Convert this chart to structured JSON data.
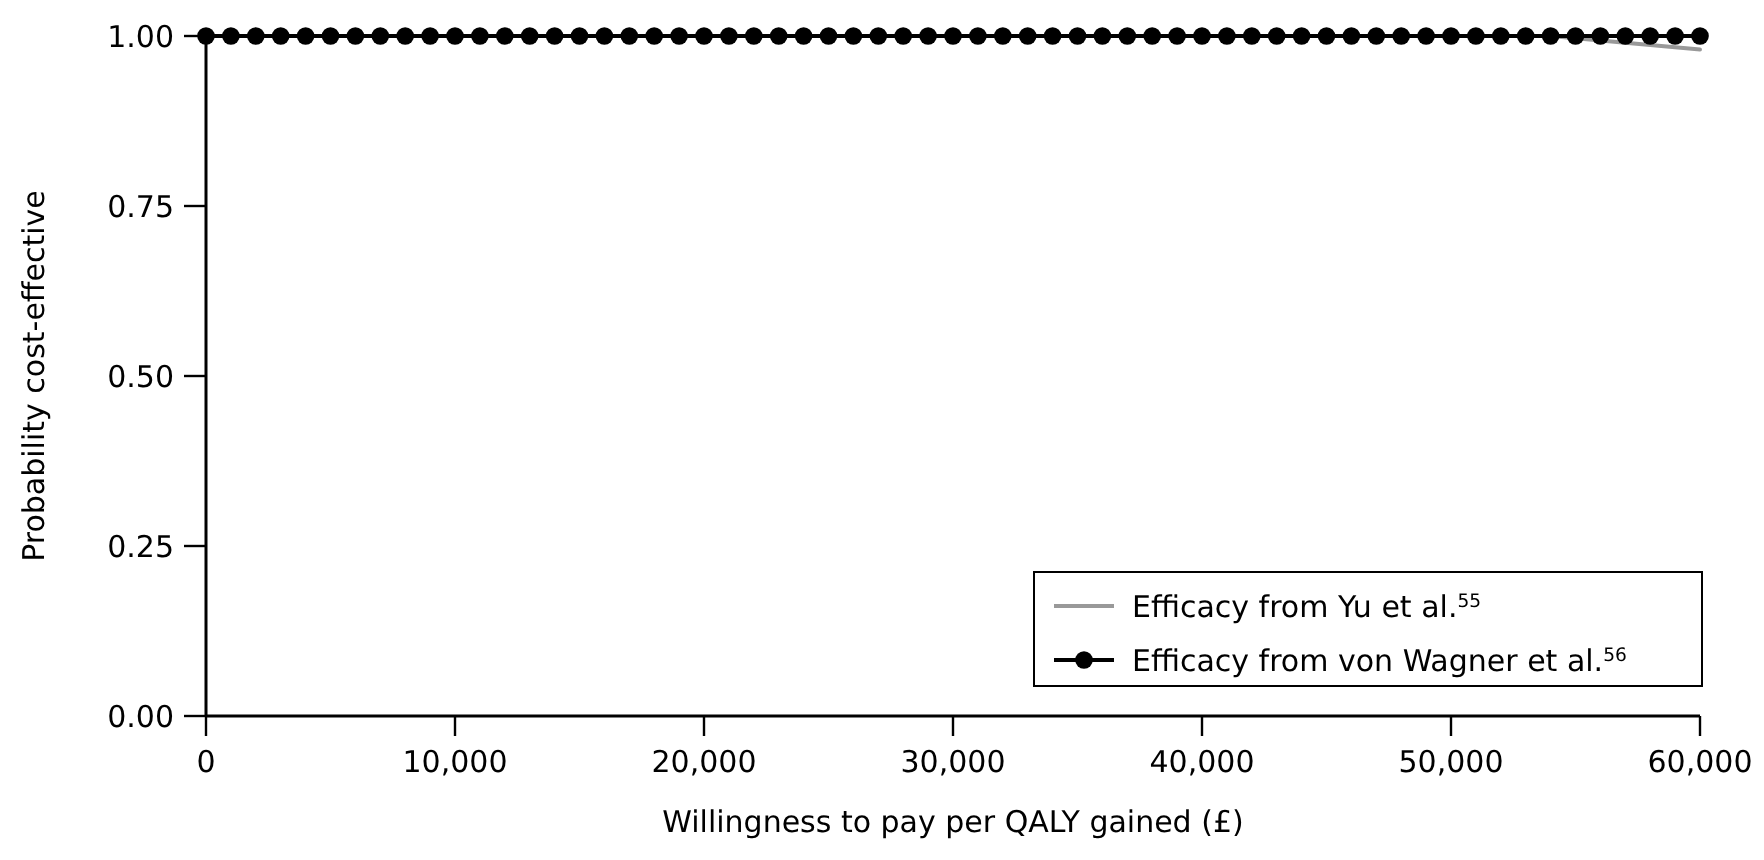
{
  "chart_data": {
    "type": "line",
    "xlabel": "Willingness to pay per QALY gained (£)",
    "ylabel": "Probability cost-effective",
    "xlim": [
      0,
      60000
    ],
    "ylim": [
      0,
      1
    ],
    "xticks": [
      0,
      {
        "value": 10000,
        "label": "10,000"
      },
      {
        "value": 20000,
        "label": "20,000"
      },
      {
        "value": 30000,
        "label": "30,000"
      },
      {
        "value": 40000,
        "label": "40,000"
      },
      {
        "value": 50000,
        "label": "50,000"
      },
      {
        "value": 60000,
        "label": "60,000"
      }
    ],
    "yticks": [
      {
        "value": 0,
        "label": "0.00"
      },
      {
        "value": 0.25,
        "label": "0.25"
      },
      {
        "value": 0.5,
        "label": "0.50"
      },
      {
        "value": 0.75,
        "label": "0.75"
      },
      {
        "value": 1,
        "label": "1.00"
      }
    ],
    "grid": false,
    "legend": "bottom right",
    "line_style": "solid",
    "series": [
      {
        "name": "Efficacy from Yu et al.$^{55}$",
        "color": "#999999",
        "marker": "none",
        "x": [
          54000,
          57000,
          60000
        ],
        "values": [
          1,
          0.99,
          0.98
        ]
      },
      {
        "name": "Efficacy from von Wagner et al.$^{56}$",
        "color": "#000000",
        "marker": "circle",
        "x": [
          0,
          1000,
          2000,
          3000,
          4000,
          5000,
          6000,
          7000,
          8000,
          9000,
          10000,
          11000,
          12000,
          13000,
          14000,
          15000,
          16000,
          17000,
          18000,
          19000,
          20000,
          21000,
          22000,
          23000,
          24000,
          25000,
          26000,
          27000,
          28000,
          29000,
          30000,
          31000,
          32000,
          33000,
          34000,
          35000,
          36000,
          37000,
          38000,
          39000,
          40000,
          41000,
          42000,
          43000,
          44000,
          45000,
          46000,
          47000,
          48000,
          49000,
          50000,
          51000,
          52000,
          53000,
          54000,
          55000,
          56000,
          57000,
          58000,
          59000,
          60000
        ],
        "values": [
          1,
          1,
          1,
          1,
          1,
          1,
          1,
          1,
          1,
          1,
          1,
          1,
          1,
          1,
          1,
          1,
          1,
          1,
          1,
          1,
          1,
          1,
          1,
          1,
          1,
          1,
          1,
          1,
          1,
          1,
          1,
          1,
          1,
          1,
          1,
          1,
          1,
          1,
          1,
          1,
          1,
          1,
          1,
          1,
          1,
          1,
          1,
          1,
          1,
          1,
          1,
          1,
          1,
          1,
          1,
          1,
          1,
          1,
          1,
          1,
          1
        ]
      }
    ]
  }
}
